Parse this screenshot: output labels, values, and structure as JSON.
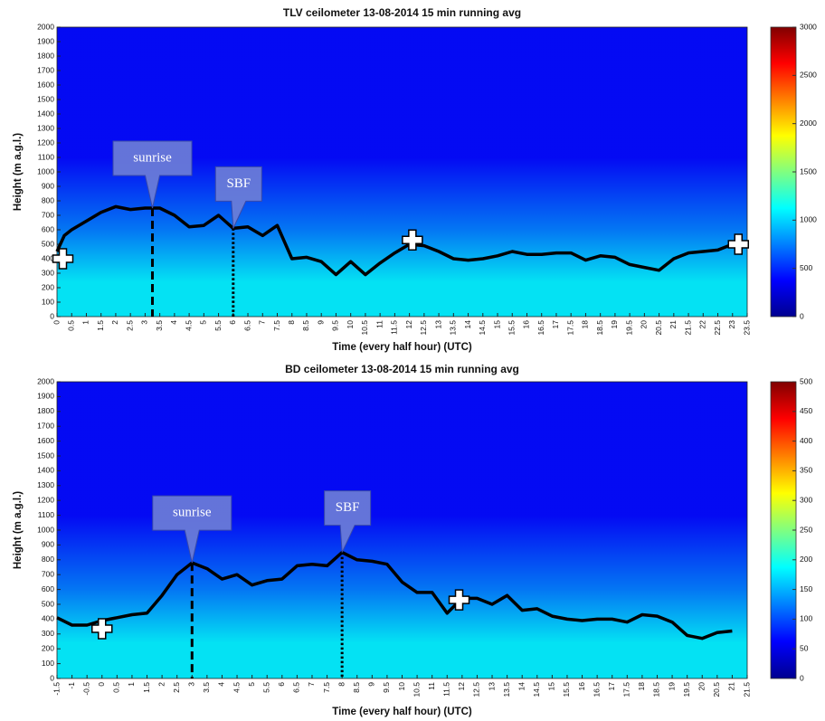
{
  "chart_data": [
    {
      "type": "line",
      "title": "TLV ceilometer 13-08-2014 15 min running avg",
      "x_label": "Time (every half hour) (UTC)",
      "y_label": "Height (m a.g.l.)",
      "xlim": [
        0,
        23.5
      ],
      "xticks": [
        0,
        0.5,
        1,
        1.5,
        2,
        2.5,
        3,
        3.5,
        4,
        4.5,
        5,
        5.5,
        6,
        6.5,
        7,
        7.5,
        8,
        8.5,
        9,
        9.5,
        10,
        10.5,
        11,
        11.5,
        12,
        12.5,
        13,
        13.5,
        14,
        14.5,
        15,
        15.5,
        16,
        16.5,
        17,
        17.5,
        18,
        18.5,
        19,
        19.5,
        20,
        20.5,
        21,
        21.5,
        22,
        22.5,
        23,
        23.5
      ],
      "ylim": [
        0,
        2000
      ],
      "yticks": [
        0,
        100,
        200,
        300,
        400,
        500,
        600,
        700,
        800,
        900,
        1000,
        1100,
        1200,
        1300,
        1400,
        1500,
        1600,
        1700,
        1800,
        1900,
        2000
      ],
      "colorbar_lim": [
        0,
        3000
      ],
      "colorbar_ticks": [
        0,
        500,
        1000,
        1500,
        2000,
        2500,
        3000
      ],
      "colormap": [
        "#00008f",
        "#0000ff",
        "#0080ff",
        "#00ffff",
        "#80ff80",
        "#ffff00",
        "#ff8000",
        "#ff0000",
        "#800000"
      ],
      "x": [
        0,
        0.25,
        0.5,
        1,
        1.5,
        2,
        2.5,
        3,
        3.5,
        4,
        4.5,
        5,
        5.5,
        6,
        6.5,
        7,
        7.5,
        8,
        8.5,
        9,
        9.5,
        10,
        10.5,
        11,
        11.5,
        12,
        12.5,
        13,
        13.5,
        14,
        14.5,
        15,
        15.5,
        16,
        16.5,
        17,
        17.5,
        18,
        18.5,
        19,
        19.5,
        20,
        20.5,
        21,
        21.5,
        22,
        22.5,
        23
      ],
      "series": [
        {
          "color": "#000000",
          "values": [
            450,
            560,
            600,
            660,
            720,
            760,
            740,
            750,
            750,
            700,
            620,
            630,
            700,
            610,
            620,
            560,
            630,
            400,
            410,
            380,
            290,
            380,
            290,
            370,
            440,
            500,
            490,
            450,
            400,
            390,
            400,
            420,
            450,
            430,
            430,
            440,
            440,
            390,
            420,
            410,
            360,
            340,
            320,
            400,
            440,
            450,
            460,
            500
          ]
        }
      ],
      "annotations": [
        {
          "text": "sunrise",
          "x": 3.25,
          "style": "dashed"
        },
        {
          "text": "SBF",
          "x": 6,
          "style": "dotted"
        }
      ],
      "markers": {
        "x": [
          0.2,
          12.1,
          23.2
        ],
        "y": [
          400,
          530,
          500
        ]
      }
    },
    {
      "type": "line",
      "title": "BD ceilometer 13-08-2014 15 min running avg",
      "x_label": "Time (every half hour) (UTC)",
      "y_label": "Height (m a.g.l.)",
      "xlim": [
        -1.5,
        21.5
      ],
      "xticks": [
        -1.5,
        -1,
        -0.5,
        0,
        0.5,
        1,
        1.5,
        2,
        2.5,
        3,
        3.5,
        4,
        4.5,
        5,
        5.5,
        6,
        6.5,
        7,
        7.5,
        8,
        8.5,
        9,
        9.5,
        10,
        10.5,
        11,
        11.5,
        12,
        12.5,
        13,
        13.5,
        14,
        14.5,
        15,
        15.5,
        16,
        16.5,
        17,
        17.5,
        18,
        18.5,
        19,
        19.5,
        20,
        20.5,
        21,
        21.5
      ],
      "ylim": [
        0,
        2000
      ],
      "yticks": [
        0,
        100,
        200,
        300,
        400,
        500,
        600,
        700,
        800,
        900,
        1000,
        1100,
        1200,
        1300,
        1400,
        1500,
        1600,
        1700,
        1800,
        1900,
        2000
      ],
      "colorbar_lim": [
        0,
        500
      ],
      "colorbar_ticks": [
        0,
        50,
        100,
        150,
        200,
        250,
        300,
        350,
        400,
        450,
        500
      ],
      "colormap": [
        "#00008f",
        "#0000ff",
        "#0080ff",
        "#00ffff",
        "#80ff80",
        "#ffff00",
        "#ff8000",
        "#ff0000",
        "#800000"
      ],
      "x": [
        -1.5,
        -1,
        -0.5,
        0,
        0.5,
        1,
        1.5,
        2,
        2.5,
        3,
        3.5,
        4,
        4.5,
        5,
        5.5,
        6,
        6.5,
        7,
        7.5,
        8,
        8.5,
        9,
        9.5,
        10,
        10.5,
        11,
        11.5,
        12,
        12.5,
        13,
        13.5,
        14,
        14.5,
        15,
        15.5,
        16,
        16.5,
        17,
        17.5,
        18,
        18.5,
        19,
        19.5,
        20,
        20.5,
        21
      ],
      "series": [
        {
          "color": "#000000",
          "values": [
            410,
            360,
            360,
            390,
            410,
            430,
            440,
            560,
            700,
            780,
            740,
            670,
            700,
            630,
            660,
            670,
            760,
            770,
            760,
            850,
            800,
            790,
            770,
            650,
            580,
            580,
            440,
            540,
            540,
            500,
            560,
            460,
            470,
            420,
            400,
            390,
            400,
            400,
            380,
            430,
            420,
            380,
            290,
            270,
            310,
            320
          ]
        }
      ],
      "annotations": [
        {
          "text": "sunrise",
          "x": 3,
          "style": "dashed"
        },
        {
          "text": "SBF",
          "x": 8,
          "style": "dotted"
        }
      ],
      "markers": {
        "x": [
          0,
          11.9
        ],
        "y": [
          335,
          530
        ]
      }
    }
  ]
}
